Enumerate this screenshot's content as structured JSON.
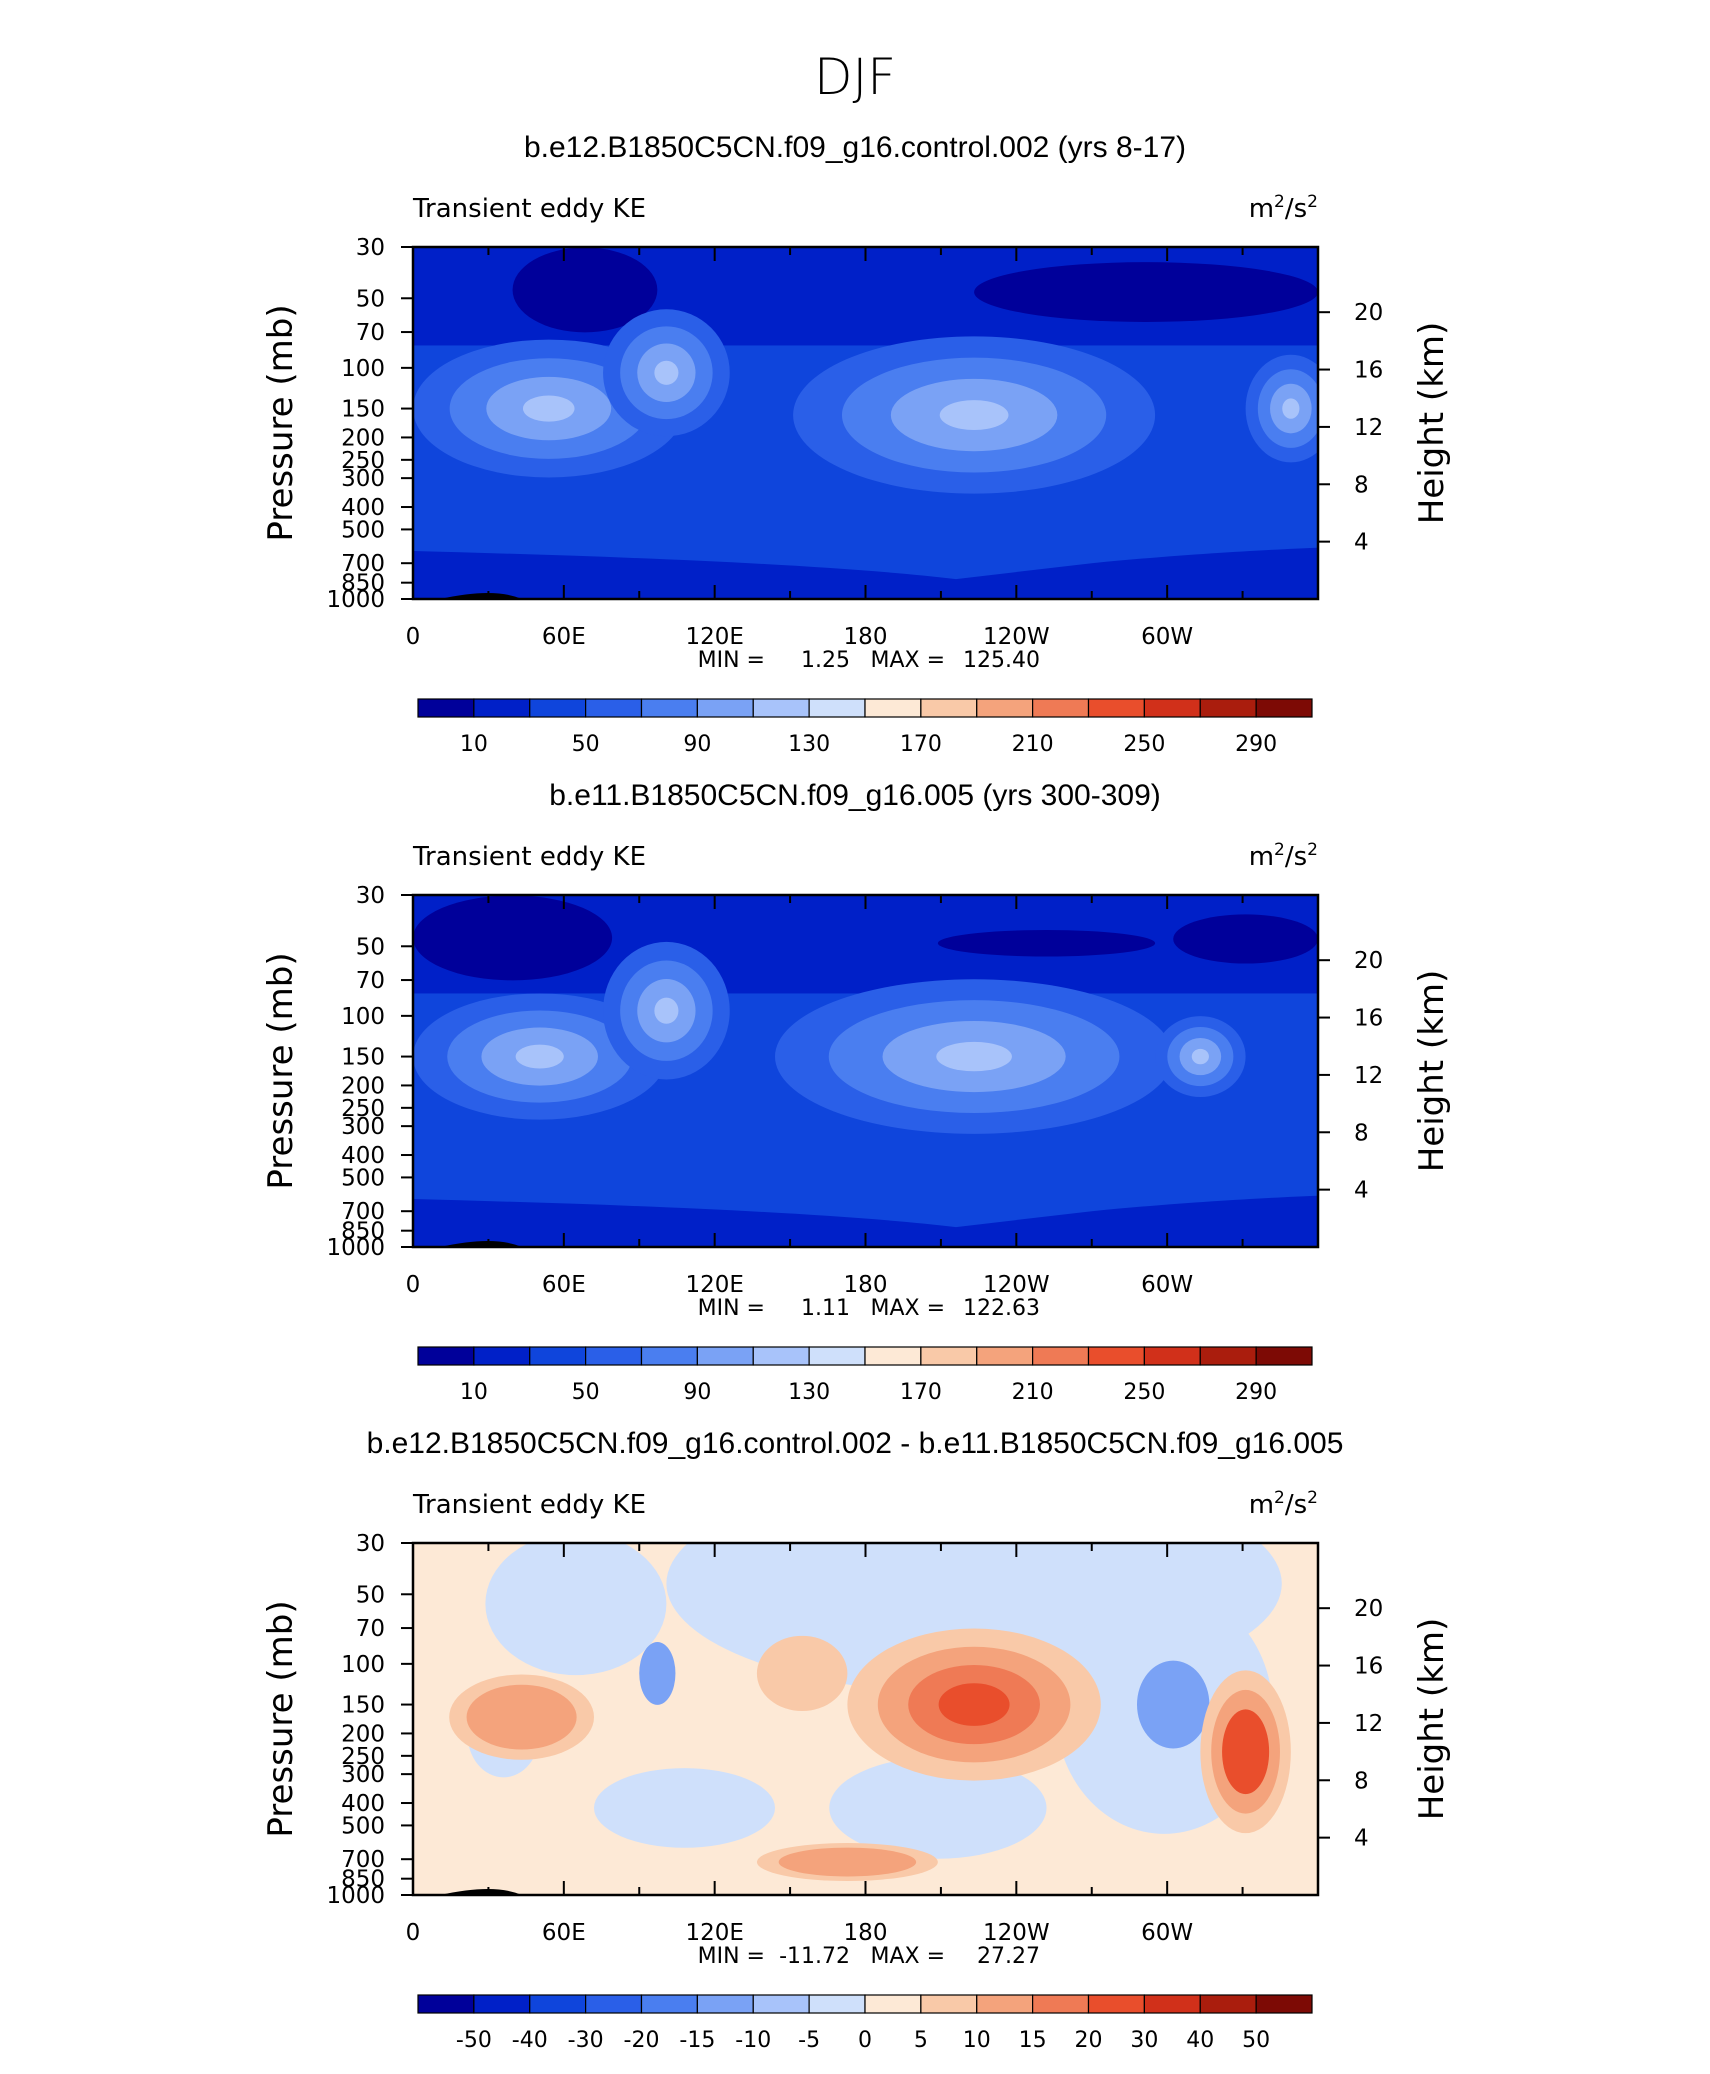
{
  "figure": {
    "title": "DJF"
  },
  "chart_data": [
    {
      "type": "contour",
      "title": "b.e12.B1850C5CN.f09_g16.control.002 (yrs 8-17)",
      "left_label": "Transient eddy KE",
      "units": "m²/s²",
      "units_base": "m",
      "units_mid": "/s",
      "units_sup": "2",
      "ylabel": "Pressure (mb)",
      "y2label": "Height (km)",
      "x_ticks": [
        "0",
        "60E",
        "120E",
        "180",
        "120W",
        "60W"
      ],
      "y_ticks": [
        "30",
        "50",
        "70",
        "100",
        "150",
        "200",
        "250",
        "300",
        "400",
        "500",
        "700",
        "850",
        "1000"
      ],
      "y2_ticks": [
        "20",
        "16",
        "12",
        "8",
        "4"
      ],
      "stats": {
        "min_label": "MIN =",
        "min": "1.25",
        "max_label": "MAX =",
        "max": "125.40"
      },
      "colorbar": {
        "labels": [
          "10",
          "50",
          "90",
          "130",
          "170",
          "210",
          "250",
          "290"
        ],
        "colors": [
          "#00009a",
          "#0020c8",
          "#0f45dc",
          "#2a5fe8",
          "#4a7ef0",
          "#7aa2f5",
          "#a8c3fa",
          "#cfe0fb",
          "#fde9d6",
          "#f9c9a8",
          "#f4a37c",
          "#ef7a55",
          "#e94e2c",
          "#d1301a",
          "#aa1d0d",
          "#7d0a05"
        ]
      },
      "shading": "ke"
    },
    {
      "type": "contour",
      "title": "b.e11.B1850C5CN.f09_g16.005 (yrs 300-309)",
      "left_label": "Transient eddy KE",
      "units": "m²/s²",
      "units_base": "m",
      "units_mid": "/s",
      "units_sup": "2",
      "ylabel": "Pressure (mb)",
      "y2label": "Height (km)",
      "x_ticks": [
        "0",
        "60E",
        "120E",
        "180",
        "120W",
        "60W"
      ],
      "y_ticks": [
        "30",
        "50",
        "70",
        "100",
        "150",
        "200",
        "250",
        "300",
        "400",
        "500",
        "700",
        "850",
        "1000"
      ],
      "y2_ticks": [
        "20",
        "16",
        "12",
        "8",
        "4"
      ],
      "stats": {
        "min_label": "MIN =",
        "min": "1.11",
        "max_label": "MAX =",
        "max": "122.63"
      },
      "colorbar": {
        "labels": [
          "10",
          "50",
          "90",
          "130",
          "170",
          "210",
          "250",
          "290"
        ],
        "colors": [
          "#00009a",
          "#0020c8",
          "#0f45dc",
          "#2a5fe8",
          "#4a7ef0",
          "#7aa2f5",
          "#a8c3fa",
          "#cfe0fb",
          "#fde9d6",
          "#f9c9a8",
          "#f4a37c",
          "#ef7a55",
          "#e94e2c",
          "#d1301a",
          "#aa1d0d",
          "#7d0a05"
        ]
      },
      "shading": "ke"
    },
    {
      "type": "contour",
      "title": "b.e12.B1850C5CN.f09_g16.control.002 - b.e11.B1850C5CN.f09_g16.005",
      "left_label": "Transient eddy KE",
      "units": "m²/s²",
      "units_base": "m",
      "units_mid": "/s",
      "units_sup": "2",
      "ylabel": "Pressure (mb)",
      "y2label": "Height (km)",
      "x_ticks": [
        "0",
        "60E",
        "120E",
        "180",
        "120W",
        "60W"
      ],
      "y_ticks": [
        "30",
        "50",
        "70",
        "100",
        "150",
        "200",
        "250",
        "300",
        "400",
        "500",
        "700",
        "850",
        "1000"
      ],
      "y2_ticks": [
        "20",
        "16",
        "12",
        "8",
        "4"
      ],
      "stats": {
        "min_label": "MIN =",
        "min": "-11.72",
        "max_label": "MAX =",
        "max": "27.27"
      },
      "colorbar": {
        "labels": [
          "-50",
          "-40",
          "-30",
          "-20",
          "-15",
          "-10",
          "-5",
          "0",
          "5",
          "10",
          "15",
          "20",
          "30",
          "40",
          "50"
        ],
        "colors": [
          "#00009a",
          "#0020c8",
          "#0f45dc",
          "#2a5fe8",
          "#4a7ef0",
          "#7aa2f5",
          "#a8c3fa",
          "#cfe0fb",
          "#fde9d6",
          "#f9c9a8",
          "#f4a37c",
          "#ef7a55",
          "#e94e2c",
          "#d1301a",
          "#aa1d0d",
          "#7d0a05"
        ]
      },
      "shading": "diff"
    }
  ]
}
